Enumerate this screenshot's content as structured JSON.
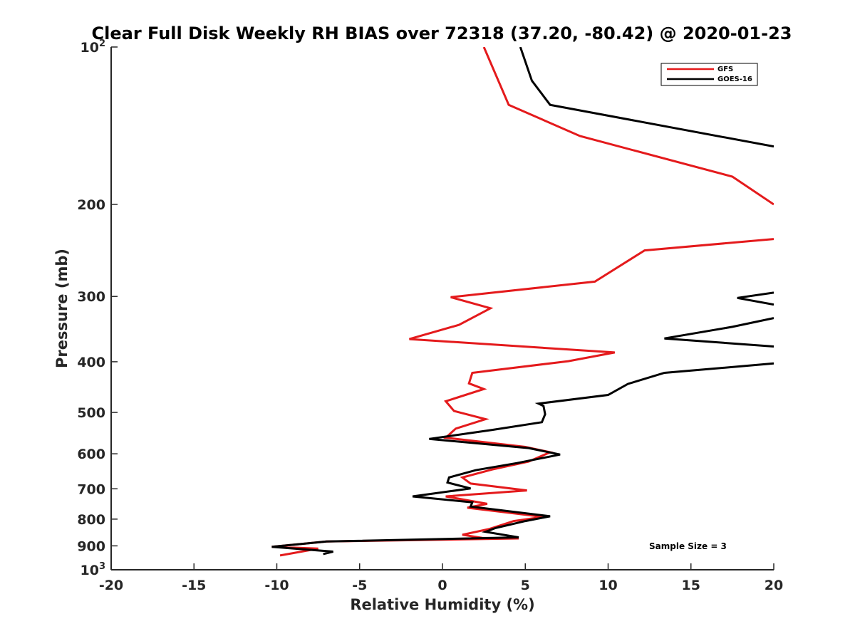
{
  "chart_data": {
    "type": "line",
    "title": "Clear Full Disk Weekly RH BIAS over 72318 (37.20, -80.42) @ 2020-01-23",
    "xlabel": "Relative Humidity (%)",
    "ylabel": "Pressure (mb)",
    "xlim": [
      -20,
      20
    ],
    "ylim": [
      100,
      1000
    ],
    "yscale": "log",
    "y_reversed": true,
    "grid": false,
    "legend_position": "top-right",
    "xticks": [
      "-20",
      "-15",
      "-10",
      "-5",
      "0",
      "5",
      "10",
      "15",
      "20"
    ],
    "xtick_values": [
      -20,
      -15,
      -10,
      -5,
      0,
      5,
      10,
      15,
      20
    ],
    "yticks": [
      {
        "value": 100,
        "base": "10",
        "exp": "2"
      },
      {
        "value": 200,
        "base": "200",
        "exp": ""
      },
      {
        "value": 300,
        "base": "300",
        "exp": ""
      },
      {
        "value": 400,
        "base": "400",
        "exp": ""
      },
      {
        "value": 500,
        "base": "500",
        "exp": ""
      },
      {
        "value": 600,
        "base": "600",
        "exp": ""
      },
      {
        "value": 700,
        "base": "700",
        "exp": ""
      },
      {
        "value": 800,
        "base": "800",
        "exp": ""
      },
      {
        "value": 900,
        "base": "900",
        "exp": ""
      },
      {
        "value": 1000,
        "base": "10",
        "exp": "3"
      }
    ],
    "annotation": "Sample Size = 3",
    "series": [
      {
        "name": "GFS",
        "color": "#e41a1c",
        "points": [
          [
            2.5,
            100
          ],
          [
            4.0,
            129
          ],
          [
            8.3,
            148
          ],
          [
            17.5,
            177
          ],
          [
            20.0,
            200
          ],
          [
            null,
            null
          ],
          [
            20.0,
            233
          ],
          [
            12.2,
            245
          ],
          [
            9.2,
            281
          ],
          [
            0.5,
            301
          ],
          [
            2.9,
            316
          ],
          [
            1.0,
            340
          ],
          [
            -2.0,
            362
          ],
          [
            10.4,
            384
          ],
          [
            7.6,
            399
          ],
          [
            1.8,
            420
          ],
          [
            1.6,
            440
          ],
          [
            2.5,
            451
          ],
          [
            0.2,
            476
          ],
          [
            0.7,
            497
          ],
          [
            2.6,
            515
          ],
          [
            0.8,
            537
          ],
          [
            0.2,
            559
          ],
          [
            5.0,
            582
          ],
          [
            6.5,
            596
          ],
          [
            5.2,
            621
          ],
          [
            3.0,
            643
          ],
          [
            1.2,
            666
          ],
          [
            1.7,
            684
          ],
          [
            5.1,
            705
          ],
          [
            0.2,
            724
          ],
          [
            2.7,
            748
          ],
          [
            1.5,
            761
          ],
          [
            6.1,
            792
          ],
          [
            4.3,
            807
          ],
          [
            2.8,
            836
          ],
          [
            1.2,
            857
          ],
          [
            2.4,
            869
          ],
          [
            4.6,
            871
          ],
          [
            -7.0,
            883
          ],
          [
            -10.3,
            904
          ],
          [
            -7.5,
            911
          ],
          [
            -9.8,
            939
          ]
        ]
      },
      {
        "name": "GOES-16",
        "color": "#000000",
        "points": [
          [
            4.7,
            100
          ],
          [
            5.4,
            116
          ],
          [
            6.5,
            129
          ],
          [
            20.0,
            155
          ],
          [
            null,
            null
          ],
          [
            20.0,
            295
          ],
          [
            17.8,
            302
          ],
          [
            20.0,
            311
          ],
          [
            null,
            null
          ],
          [
            20.0,
            330
          ],
          [
            17.5,
            343
          ],
          [
            13.4,
            361
          ],
          [
            20.0,
            374
          ],
          [
            null,
            null
          ],
          [
            20.0,
            403
          ],
          [
            13.4,
            420
          ],
          [
            11.2,
            441
          ],
          [
            10.0,
            463
          ],
          [
            5.8,
            481
          ],
          [
            6.1,
            486
          ],
          [
            6.2,
            504
          ],
          [
            6.0,
            522
          ],
          [
            3.0,
            540
          ],
          [
            -0.8,
            562
          ],
          [
            5.2,
            585
          ],
          [
            7.1,
            602
          ],
          [
            4.5,
            625
          ],
          [
            2.0,
            645
          ],
          [
            0.4,
            666
          ],
          [
            0.3,
            681
          ],
          [
            1.7,
            699
          ],
          [
            -1.8,
            724
          ],
          [
            1.8,
            743
          ],
          [
            1.7,
            757
          ],
          [
            6.5,
            790
          ],
          [
            5.0,
            807
          ],
          [
            3.2,
            832
          ],
          [
            2.6,
            846
          ],
          [
            4.6,
            867
          ],
          [
            -7.0,
            883
          ],
          [
            -10.3,
            904
          ],
          [
            -6.6,
            923
          ],
          [
            -7.2,
            933
          ]
        ]
      }
    ]
  }
}
